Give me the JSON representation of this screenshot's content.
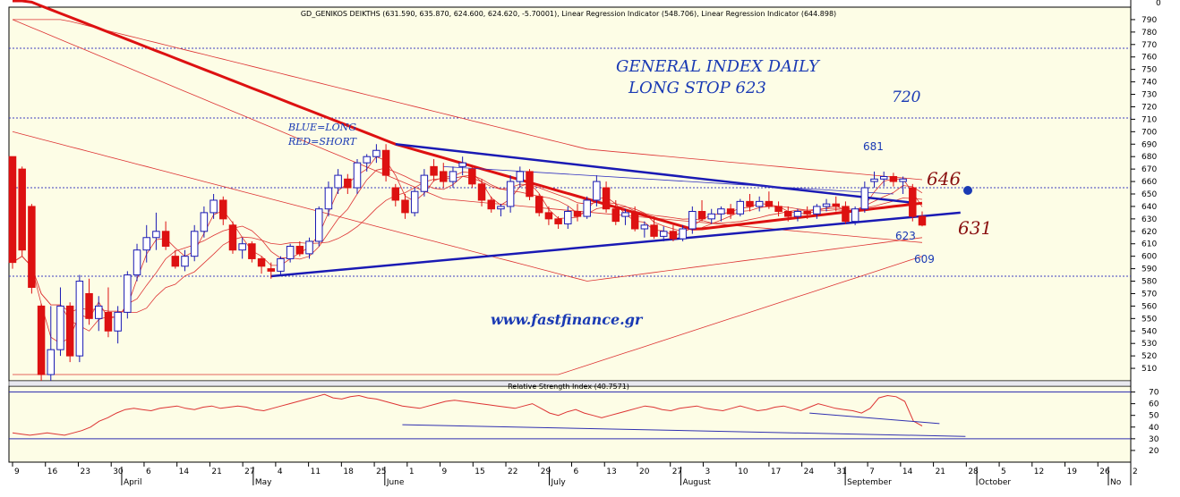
{
  "chart_data": [
    {
      "type": "candlestick",
      "title": "GD_GENIKOS DEIKTHS (631.590, 635.870, 624.600, 624.620, -5.70001), Linear Regression Indicator (548.706), Linear Regression Indicator (644.898)",
      "ylim": [
        500,
        800
      ],
      "yticks": [
        510,
        520,
        530,
        540,
        550,
        560,
        570,
        580,
        590,
        600,
        610,
        620,
        630,
        640,
        650,
        660,
        670,
        680,
        690,
        700,
        710,
        720,
        730,
        740,
        750,
        760,
        770,
        780,
        790
      ],
      "y_top_label": "0",
      "x_tick_labels": [
        "9",
        "16",
        "23",
        "30",
        "6",
        "14",
        "21",
        "27",
        "4",
        "11",
        "18",
        "25",
        "1",
        "9",
        "15",
        "22",
        "29",
        "6",
        "13",
        "20",
        "27",
        "3",
        "10",
        "17",
        "24",
        "31",
        "7",
        "14",
        "21",
        "28",
        "5",
        "12",
        "19",
        "26",
        "2"
      ],
      "x_month_labels": [
        "April",
        "May",
        "June",
        "July",
        "August",
        "September",
        "October",
        "No"
      ],
      "candles": [
        {
          "o": 680,
          "h": 680,
          "l": 590,
          "c": 595
        },
        {
          "o": 670,
          "h": 672,
          "l": 600,
          "c": 605
        },
        {
          "o": 640,
          "h": 642,
          "l": 570,
          "c": 575
        },
        {
          "o": 560,
          "h": 562,
          "l": 500,
          "c": 505
        },
        {
          "o": 505,
          "h": 560,
          "l": 500,
          "c": 525
        },
        {
          "o": 525,
          "h": 575,
          "l": 520,
          "c": 560
        },
        {
          "o": 560,
          "h": 563,
          "l": 515,
          "c": 520
        },
        {
          "o": 520,
          "h": 585,
          "l": 515,
          "c": 580
        },
        {
          "o": 570,
          "h": 582,
          "l": 545,
          "c": 550
        },
        {
          "o": 550,
          "h": 568,
          "l": 540,
          "c": 560
        },
        {
          "o": 555,
          "h": 575,
          "l": 535,
          "c": 540
        },
        {
          "o": 540,
          "h": 560,
          "l": 530,
          "c": 555
        },
        {
          "o": 555,
          "h": 588,
          "l": 550,
          "c": 585
        },
        {
          "o": 585,
          "h": 610,
          "l": 580,
          "c": 605
        },
        {
          "o": 605,
          "h": 625,
          "l": 595,
          "c": 615
        },
        {
          "o": 615,
          "h": 635,
          "l": 605,
          "c": 620
        },
        {
          "o": 620,
          "h": 628,
          "l": 605,
          "c": 608
        },
        {
          "o": 600,
          "h": 605,
          "l": 590,
          "c": 592
        },
        {
          "o": 592,
          "h": 605,
          "l": 588,
          "c": 600
        },
        {
          "o": 600,
          "h": 625,
          "l": 596,
          "c": 620
        },
        {
          "o": 620,
          "h": 640,
          "l": 615,
          "c": 635
        },
        {
          "o": 635,
          "h": 650,
          "l": 630,
          "c": 645
        },
        {
          "o": 645,
          "h": 648,
          "l": 625,
          "c": 630
        },
        {
          "o": 625,
          "h": 628,
          "l": 602,
          "c": 605
        },
        {
          "o": 605,
          "h": 615,
          "l": 598,
          "c": 610
        },
        {
          "o": 610,
          "h": 612,
          "l": 595,
          "c": 598
        },
        {
          "o": 598,
          "h": 600,
          "l": 586,
          "c": 592
        },
        {
          "o": 590,
          "h": 595,
          "l": 582,
          "c": 588
        },
        {
          "o": 588,
          "h": 600,
          "l": 585,
          "c": 598
        },
        {
          "o": 598,
          "h": 610,
          "l": 595,
          "c": 608
        },
        {
          "o": 608,
          "h": 612,
          "l": 600,
          "c": 602
        },
        {
          "o": 602,
          "h": 615,
          "l": 598,
          "c": 612
        },
        {
          "o": 612,
          "h": 640,
          "l": 608,
          "c": 638
        },
        {
          "o": 638,
          "h": 660,
          "l": 632,
          "c": 655
        },
        {
          "o": 655,
          "h": 670,
          "l": 650,
          "c": 665
        },
        {
          "o": 662,
          "h": 666,
          "l": 650,
          "c": 655
        },
        {
          "o": 655,
          "h": 678,
          "l": 650,
          "c": 675
        },
        {
          "o": 675,
          "h": 682,
          "l": 668,
          "c": 680
        },
        {
          "o": 680,
          "h": 690,
          "l": 675,
          "c": 685
        },
        {
          "o": 685,
          "h": 690,
          "l": 660,
          "c": 665
        },
        {
          "o": 655,
          "h": 658,
          "l": 640,
          "c": 645
        },
        {
          "o": 645,
          "h": 650,
          "l": 630,
          "c": 635
        },
        {
          "o": 635,
          "h": 655,
          "l": 632,
          "c": 652
        },
        {
          "o": 652,
          "h": 670,
          "l": 648,
          "c": 665
        },
        {
          "o": 672,
          "h": 678,
          "l": 660,
          "c": 665
        },
        {
          "o": 668,
          "h": 675,
          "l": 655,
          "c": 660
        },
        {
          "o": 660,
          "h": 672,
          "l": 655,
          "c": 668
        },
        {
          "o": 672,
          "h": 680,
          "l": 665,
          "c": 675
        },
        {
          "o": 670,
          "h": 672,
          "l": 655,
          "c": 658
        },
        {
          "o": 658,
          "h": 662,
          "l": 640,
          "c": 645
        },
        {
          "o": 645,
          "h": 648,
          "l": 635,
          "c": 638
        },
        {
          "o": 638,
          "h": 642,
          "l": 632,
          "c": 640
        },
        {
          "o": 640,
          "h": 665,
          "l": 635,
          "c": 660
        },
        {
          "o": 660,
          "h": 672,
          "l": 655,
          "c": 668
        },
        {
          "o": 668,
          "h": 670,
          "l": 645,
          "c": 648
        },
        {
          "o": 648,
          "h": 650,
          "l": 632,
          "c": 635
        },
        {
          "o": 635,
          "h": 640,
          "l": 625,
          "c": 630
        },
        {
          "o": 630,
          "h": 632,
          "l": 622,
          "c": 626
        },
        {
          "o": 626,
          "h": 640,
          "l": 622,
          "c": 636
        },
        {
          "o": 636,
          "h": 642,
          "l": 628,
          "c": 632
        },
        {
          "o": 632,
          "h": 648,
          "l": 630,
          "c": 645
        },
        {
          "o": 645,
          "h": 665,
          "l": 640,
          "c": 660
        },
        {
          "o": 655,
          "h": 660,
          "l": 635,
          "c": 638
        },
        {
          "o": 638,
          "h": 645,
          "l": 625,
          "c": 628
        },
        {
          "o": 632,
          "h": 638,
          "l": 625,
          "c": 635
        },
        {
          "o": 635,
          "h": 640,
          "l": 620,
          "c": 622
        },
        {
          "o": 622,
          "h": 628,
          "l": 615,
          "c": 625
        },
        {
          "o": 625,
          "h": 632,
          "l": 614,
          "c": 616
        },
        {
          "o": 616,
          "h": 624,
          "l": 612,
          "c": 620
        },
        {
          "o": 620,
          "h": 625,
          "l": 612,
          "c": 614
        },
        {
          "o": 614,
          "h": 625,
          "l": 612,
          "c": 622
        },
        {
          "o": 622,
          "h": 640,
          "l": 618,
          "c": 636
        },
        {
          "o": 636,
          "h": 645,
          "l": 628,
          "c": 630
        },
        {
          "o": 630,
          "h": 638,
          "l": 626,
          "c": 634
        },
        {
          "o": 634,
          "h": 640,
          "l": 628,
          "c": 638
        },
        {
          "o": 638,
          "h": 642,
          "l": 630,
          "c": 634
        },
        {
          "o": 634,
          "h": 646,
          "l": 632,
          "c": 644
        },
        {
          "o": 644,
          "h": 650,
          "l": 636,
          "c": 640
        },
        {
          "o": 640,
          "h": 648,
          "l": 636,
          "c": 644
        },
        {
          "o": 644,
          "h": 652,
          "l": 638,
          "c": 640
        },
        {
          "o": 640,
          "h": 644,
          "l": 632,
          "c": 636
        },
        {
          "o": 636,
          "h": 640,
          "l": 628,
          "c": 632
        },
        {
          "o": 632,
          "h": 638,
          "l": 628,
          "c": 636
        },
        {
          "o": 636,
          "h": 640,
          "l": 630,
          "c": 634
        },
        {
          "o": 634,
          "h": 642,
          "l": 630,
          "c": 640
        },
        {
          "o": 640,
          "h": 646,
          "l": 636,
          "c": 642
        },
        {
          "o": 642,
          "h": 648,
          "l": 636,
          "c": 640
        },
        {
          "o": 640,
          "h": 644,
          "l": 626,
          "c": 628
        },
        {
          "o": 628,
          "h": 640,
          "l": 625,
          "c": 638
        },
        {
          "o": 638,
          "h": 660,
          "l": 635,
          "c": 655
        },
        {
          "o": 660,
          "h": 668,
          "l": 655,
          "c": 662
        },
        {
          "o": 662,
          "h": 668,
          "l": 656,
          "c": 664
        },
        {
          "o": 664,
          "h": 667,
          "l": 656,
          "c": 660
        },
        {
          "o": 660,
          "h": 664,
          "l": 650,
          "c": 662
        },
        {
          "o": 655,
          "h": 658,
          "l": 628,
          "c": 632
        },
        {
          "o": 632,
          "h": 636,
          "l": 624,
          "c": 625
        }
      ],
      "annotations": {
        "title_line1": "GENERAL INDEX DAILY",
        "title_line2": "LONG STOP 623",
        "legend_blue": "BLUE=LONG",
        "legend_red": "RED=SHORT",
        "website": "www.fastfinance.gr",
        "level_720": "720",
        "level_681": "681",
        "level_646": "646",
        "level_631": "631",
        "level_623": "623",
        "level_609": "609"
      },
      "dotted_levels": [
        767,
        711,
        655,
        584
      ],
      "trendline_upper": {
        "from": [
          40,
          690
        ],
        "to": [
          94,
          643
        ]
      },
      "trendline_lower": {
        "from": [
          27,
          584
        ],
        "to": [
          99,
          635
        ]
      },
      "colors": {
        "up": "#1a1ab4",
        "down": "#dd1111",
        "regression": "#dd1111",
        "trend": "#1a1ab4",
        "grid": "#4040c0"
      }
    },
    {
      "type": "line",
      "title": "Relative Strength Index (40.7571)",
      "ylim": [
        10,
        75
      ],
      "yticks": [
        20,
        30,
        40,
        50,
        60,
        70
      ],
      "reference_levels": [
        30,
        70
      ],
      "values": [
        35,
        34,
        33,
        34,
        35,
        34,
        33,
        35,
        37,
        40,
        45,
        48,
        52,
        55,
        56,
        55,
        54,
        56,
        57,
        58,
        56,
        55,
        57,
        58,
        56,
        57,
        58,
        57,
        55,
        54,
        56,
        58,
        60,
        62,
        64,
        66,
        68,
        65,
        64,
        66,
        67,
        65,
        64,
        62,
        60,
        58,
        57,
        56,
        58,
        60,
        62,
        63,
        62,
        61,
        60,
        59,
        58,
        57,
        56,
        58,
        60,
        56,
        52,
        50,
        53,
        55,
        52,
        50,
        48,
        50,
        52,
        54,
        56,
        58,
        57,
        55,
        54,
        56,
        57,
        58,
        56,
        55,
        54,
        56,
        58,
        56,
        54,
        55,
        57,
        58,
        56,
        54,
        57,
        60,
        58,
        56,
        55,
        54,
        52,
        56,
        65,
        67,
        66,
        62,
        45,
        41
      ],
      "divergence_lines": [
        {
          "from": [
            92,
            52
          ],
          "to": [
            107,
            43
          ]
        },
        {
          "from": [
            45,
            42
          ],
          "to": [
            110,
            32
          ]
        }
      ]
    }
  ]
}
